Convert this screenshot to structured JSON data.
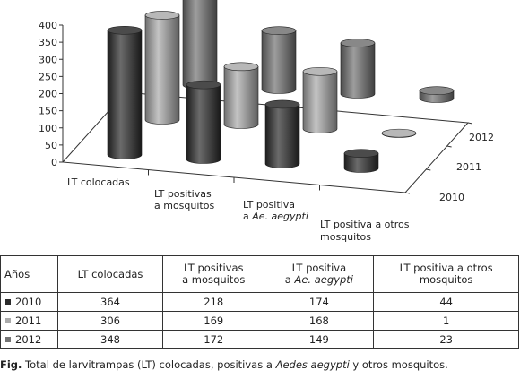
{
  "chart_data": {
    "type": "bar",
    "subtype": "3d-cylinder",
    "categories": [
      "LT colocadas",
      "LT positivas a mosquitos",
      "LT positiva a Ae. aegypti",
      "LT positiva a otros mosquitos"
    ],
    "series": [
      {
        "name": "2010",
        "values": [
          364,
          218,
          174,
          44
        ],
        "color": "#2b2b2b"
      },
      {
        "name": "2011",
        "values": [
          306,
          169,
          168,
          1
        ],
        "color": "#ababab"
      },
      {
        "name": "2012",
        "values": [
          348,
          172,
          149,
          23
        ],
        "color": "#737373"
      }
    ],
    "ylim": [
      0,
      400
    ],
    "yticks": [
      "0",
      "50",
      "100",
      "150",
      "200",
      "250",
      "300",
      "350",
      "400"
    ],
    "grid": false,
    "category_labels": {
      "c0": [
        "LT colocadas"
      ],
      "c1": [
        "LT positivas",
        "a mosquitos"
      ],
      "c2a": "LT positiva",
      "c2b_prefix": "a ",
      "c2b_italic": "Ae. aegypti",
      "c3": [
        "LT positiva a otros",
        "mosquitos"
      ]
    },
    "depth_labels": [
      "2010",
      "2011",
      "2012"
    ]
  },
  "table": {
    "headers": {
      "year": "Años",
      "col1": "LT colocadas",
      "col2_l1": "LT positivas",
      "col2_l2": "a mosquitos",
      "col3_l1": "LT positiva",
      "col3_l2_prefix": "a ",
      "col3_l2_italic": "Ae. aegypti",
      "col4_l1": "LT positiva a otros",
      "col4_l2": "mosquitos"
    },
    "rows": [
      {
        "year": "2010",
        "v1": "364",
        "v2": "218",
        "v3": "174",
        "v4": "44"
      },
      {
        "year": "2011",
        "v1": "306",
        "v2": "169",
        "v3": "168",
        "v4": "1"
      },
      {
        "year": "2012",
        "v1": "348",
        "v2": "172",
        "v3": "149",
        "v4": "23"
      }
    ]
  },
  "caption": {
    "label": "Fig.",
    "text1": " Total de larvitrampas (LT) colocadas, positivas a ",
    "italic": "Aedes aegypti",
    "text2": " y otros mosquitos."
  }
}
